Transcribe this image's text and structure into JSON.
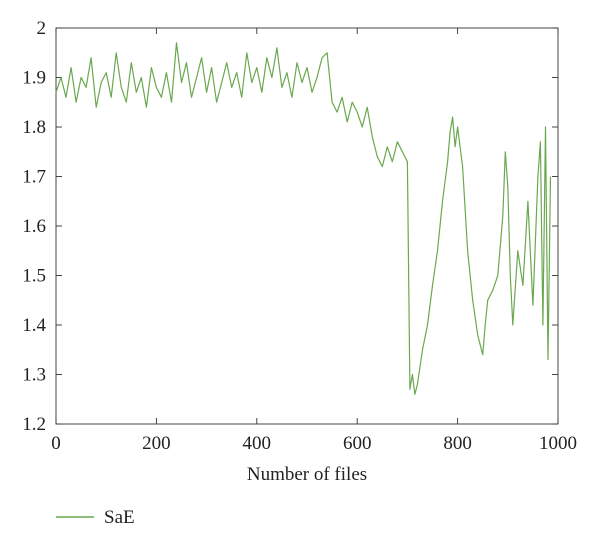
{
  "chart_data": {
    "type": "line",
    "title": "",
    "xlabel": "Number of files",
    "ylabel": "",
    "xlim": [
      0,
      1000
    ],
    "ylim": [
      1.2,
      2.0
    ],
    "xticks": [
      "0",
      "200",
      "400",
      "600",
      "800",
      "1000"
    ],
    "yticks": [
      "1.2",
      "1.3",
      "1.4",
      "1.5",
      "1.6",
      "1.7",
      "1.8",
      "1.9",
      "2"
    ],
    "grid": false,
    "legend_position": "bottom-left",
    "series": [
      {
        "name": "SaE",
        "color": "#6aa84f",
        "x": [
          0,
          10,
          20,
          30,
          40,
          50,
          60,
          70,
          80,
          90,
          100,
          110,
          120,
          130,
          140,
          150,
          160,
          170,
          180,
          190,
          200,
          210,
          220,
          230,
          240,
          250,
          260,
          270,
          280,
          290,
          300,
          310,
          320,
          330,
          340,
          350,
          360,
          370,
          380,
          390,
          400,
          410,
          420,
          430,
          440,
          450,
          460,
          470,
          480,
          490,
          500,
          510,
          520,
          530,
          540,
          550,
          560,
          570,
          580,
          590,
          600,
          610,
          620,
          630,
          640,
          650,
          660,
          670,
          680,
          690,
          700,
          705,
          710,
          715,
          720,
          730,
          740,
          750,
          760,
          770,
          780,
          785,
          790,
          795,
          800,
          810,
          820,
          830,
          840,
          845,
          850,
          855,
          860,
          870,
          880,
          890,
          895,
          900,
          905,
          910,
          920,
          930,
          940,
          950,
          960,
          965,
          970,
          975,
          980,
          985
        ],
        "y": [
          1.87,
          1.9,
          1.86,
          1.92,
          1.85,
          1.9,
          1.88,
          1.94,
          1.84,
          1.89,
          1.91,
          1.86,
          1.95,
          1.88,
          1.85,
          1.93,
          1.87,
          1.9,
          1.84,
          1.92,
          1.88,
          1.86,
          1.91,
          1.85,
          1.97,
          1.89,
          1.93,
          1.86,
          1.9,
          1.94,
          1.87,
          1.92,
          1.85,
          1.89,
          1.93,
          1.88,
          1.91,
          1.86,
          1.95,
          1.89,
          1.92,
          1.87,
          1.94,
          1.9,
          1.96,
          1.88,
          1.91,
          1.86,
          1.93,
          1.89,
          1.92,
          1.87,
          1.9,
          1.94,
          1.95,
          1.85,
          1.83,
          1.86,
          1.81,
          1.85,
          1.83,
          1.8,
          1.84,
          1.78,
          1.74,
          1.72,
          1.76,
          1.73,
          1.77,
          1.75,
          1.73,
          1.27,
          1.3,
          1.26,
          1.28,
          1.35,
          1.4,
          1.48,
          1.55,
          1.65,
          1.73,
          1.79,
          1.82,
          1.76,
          1.8,
          1.72,
          1.55,
          1.45,
          1.38,
          1.36,
          1.34,
          1.4,
          1.45,
          1.47,
          1.5,
          1.62,
          1.75,
          1.68,
          1.5,
          1.4,
          1.55,
          1.48,
          1.65,
          1.44,
          1.7,
          1.77,
          1.4,
          1.8,
          1.33,
          1.7
        ]
      }
    ]
  }
}
